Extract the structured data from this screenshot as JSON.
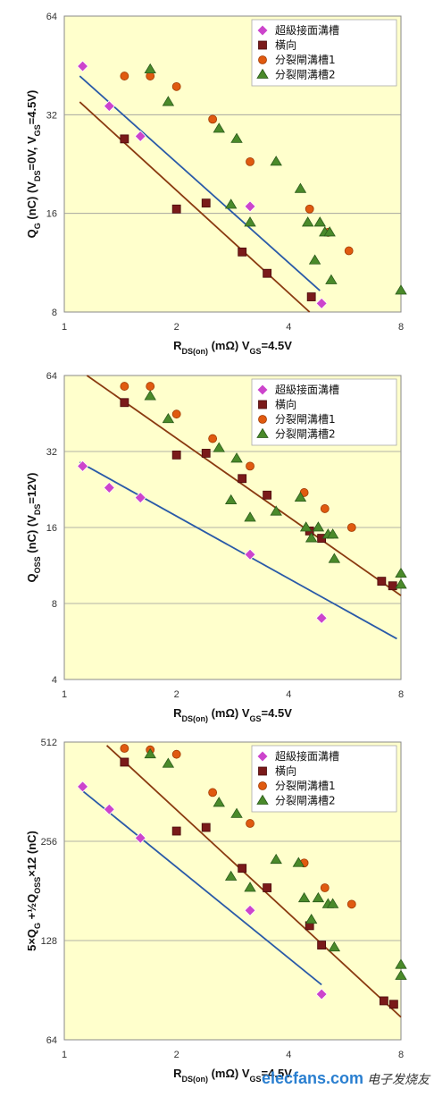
{
  "chart_data": [
    {
      "type": "scatter",
      "xscale": "log",
      "yscale": "log",
      "xlim": [
        1,
        8
      ],
      "ylim": [
        8,
        64
      ],
      "xticks": [
        1,
        2,
        4,
        8
      ],
      "yticks": [
        8,
        16,
        32,
        64
      ],
      "ylabel_main": "Q",
      "ylabel_sub": "G",
      "ylabel_rest": " (nC) (V",
      "ylabel_sub2": "DS",
      "ylabel_rest2": "=0V, V",
      "ylabel_sub3": "GS",
      "ylabel_rest3": "=4.5V)",
      "xlabel_main": "R",
      "xlabel_sub": "DS(on)",
      "xlabel_rest": " (mΩ) V",
      "xlabel_sub2": "GS",
      "xlabel_rest2": "=4.5V",
      "legend_position": "top-right",
      "series": [
        {
          "name": "超級接面溝槽",
          "marker": "diamond",
          "color": "#cc44cc",
          "points": [
            [
              1.12,
              45
            ],
            [
              1.32,
              34
            ],
            [
              1.6,
              27.5
            ],
            [
              3.15,
              16.8
            ],
            [
              4.9,
              8.5
            ]
          ]
        },
        {
          "name": "橫向",
          "marker": "square",
          "color": "#7a1a1a",
          "points": [
            [
              1.45,
              27
            ],
            [
              2.0,
              16.5
            ],
            [
              2.4,
              17.2
            ],
            [
              3.0,
              12.2
            ],
            [
              3.5,
              10.5
            ],
            [
              4.6,
              8.9
            ]
          ]
        },
        {
          "name": "分裂閘溝槽1",
          "marker": "circle",
          "color": "#e05a10",
          "points": [
            [
              1.45,
              42
            ],
            [
              1.7,
              42
            ],
            [
              2.0,
              39
            ],
            [
              2.5,
              31
            ],
            [
              3.15,
              23
            ],
            [
              4.55,
              16.5
            ],
            [
              5.1,
              14
            ],
            [
              5.8,
              12.3
            ]
          ]
        },
        {
          "name": "分裂閘溝槽2",
          "marker": "triangle",
          "color": "#4a8a2a",
          "points": [
            [
              1.7,
              44
            ],
            [
              1.9,
              35
            ],
            [
              2.6,
              29
            ],
            [
              2.8,
              17
            ],
            [
              2.9,
              27
            ],
            [
              3.15,
              15
            ],
            [
              3.7,
              23
            ],
            [
              4.3,
              19
            ],
            [
              4.5,
              15
            ],
            [
              4.7,
              11.5
            ],
            [
              4.85,
              15
            ],
            [
              5.0,
              14
            ],
            [
              5.15,
              14
            ],
            [
              5.2,
              10
            ],
            [
              8.0,
              9.3
            ]
          ]
        }
      ],
      "trendlines": [
        {
          "color": "#2a5aa8",
          "from": [
            1.1,
            42
          ],
          "to": [
            4.85,
            9.3
          ]
        },
        {
          "color": "#8a3a10",
          "from": [
            1.1,
            35
          ],
          "to": [
            4.55,
            8.0
          ]
        }
      ]
    },
    {
      "type": "scatter",
      "xscale": "log",
      "yscale": "log",
      "xlim": [
        1,
        8
      ],
      "ylim": [
        4,
        64
      ],
      "xticks": [
        1,
        2,
        4,
        8
      ],
      "yticks": [
        4,
        8,
        16,
        32,
        64
      ],
      "ylabel_main": "Q",
      "ylabel_sub": "OSS",
      "ylabel_rest": " (nC) (V",
      "ylabel_sub2": "DS",
      "ylabel_rest2": "=12V)",
      "xlabel_main": "R",
      "xlabel_sub": "DS(on)",
      "xlabel_rest": " (mΩ) V",
      "xlabel_sub2": "GS",
      "xlabel_rest2": "=4.5V",
      "legend_position": "top-right",
      "series": [
        {
          "name": "超級接面溝槽",
          "marker": "diamond",
          "color": "#cc44cc",
          "points": [
            [
              1.12,
              28
            ],
            [
              1.32,
              23
            ],
            [
              1.6,
              21
            ],
            [
              3.15,
              12.5
            ],
            [
              4.9,
              7
            ]
          ]
        },
        {
          "name": "橫向",
          "marker": "square",
          "color": "#7a1a1a",
          "points": [
            [
              1.45,
              50
            ],
            [
              2.0,
              31
            ],
            [
              2.4,
              31.5
            ],
            [
              3.0,
              25
            ],
            [
              3.5,
              21.5
            ],
            [
              4.55,
              15.5
            ],
            [
              4.9,
              14.5
            ],
            [
              7.1,
              9.8
            ],
            [
              7.6,
              9.4
            ]
          ]
        },
        {
          "name": "分裂閘溝槽1",
          "marker": "circle",
          "color": "#e05a10",
          "points": [
            [
              1.45,
              58
            ],
            [
              1.7,
              58
            ],
            [
              2.0,
              45
            ],
            [
              2.5,
              36
            ],
            [
              3.15,
              28
            ],
            [
              4.4,
              22
            ],
            [
              5.0,
              19
            ],
            [
              5.9,
              16
            ]
          ]
        },
        {
          "name": "分裂閘溝槽2",
          "marker": "triangle",
          "color": "#4a8a2a",
          "points": [
            [
              1.7,
              53
            ],
            [
              1.9,
              43
            ],
            [
              2.6,
              33
            ],
            [
              2.8,
              20.5
            ],
            [
              2.9,
              30
            ],
            [
              3.15,
              17.5
            ],
            [
              3.7,
              18.5
            ],
            [
              4.3,
              21
            ],
            [
              4.45,
              16
            ],
            [
              4.6,
              14.5
            ],
            [
              4.8,
              16
            ],
            [
              5.1,
              15
            ],
            [
              5.25,
              15
            ],
            [
              5.3,
              12
            ],
            [
              8.0,
              10.5
            ],
            [
              8.0,
              9.5
            ]
          ]
        }
      ],
      "trendlines": [
        {
          "color": "#2a5aa8",
          "from": [
            1.1,
            29
          ],
          "to": [
            7.8,
            5.8
          ]
        },
        {
          "color": "#8a3a10",
          "from": [
            1.15,
            64
          ],
          "to": [
            8.0,
            8.6
          ]
        }
      ]
    },
    {
      "type": "scatter",
      "xscale": "log",
      "yscale": "log",
      "xlim": [
        1,
        8
      ],
      "ylim": [
        64,
        512
      ],
      "xticks": [
        1,
        2,
        4,
        8
      ],
      "yticks": [
        64,
        128,
        256,
        512
      ],
      "ylabel_formula": "5×Q",
      "ylabel_sub": "G",
      "ylabel_mid": " +½Q",
      "ylabel_sub2": "OSS",
      "ylabel_end": "×12 (nC)",
      "xlabel_main": "R",
      "xlabel_sub": "DS(on)",
      "xlabel_rest": " (mΩ) V",
      "xlabel_sub2": "GS",
      "xlabel_rest2": "=4.5V",
      "legend_position": "top-right",
      "series": [
        {
          "name": "超級接面溝槽",
          "marker": "diamond",
          "color": "#cc44cc",
          "points": [
            [
              1.12,
              375
            ],
            [
              1.32,
              320
            ],
            [
              1.6,
              262
            ],
            [
              3.15,
              158
            ],
            [
              4.9,
              88
            ]
          ]
        },
        {
          "name": "橫向",
          "marker": "square",
          "color": "#7a1a1a",
          "points": [
            [
              1.45,
              445
            ],
            [
              2.0,
              275
            ],
            [
              2.4,
              282
            ],
            [
              3.0,
              212
            ],
            [
              3.5,
              185
            ],
            [
              4.55,
              142
            ],
            [
              4.9,
              124
            ],
            [
              7.2,
              84
            ],
            [
              7.65,
              82
            ]
          ]
        },
        {
          "name": "分裂閘溝槽1",
          "marker": "circle",
          "color": "#e05a10",
          "points": [
            [
              1.45,
              490
            ],
            [
              1.7,
              485
            ],
            [
              2.0,
              470
            ],
            [
              2.5,
              360
            ],
            [
              3.15,
              290
            ],
            [
              4.4,
              220
            ],
            [
              5.0,
              185
            ],
            [
              5.9,
              165
            ]
          ]
        },
        {
          "name": "分裂閘溝槽2",
          "marker": "triangle",
          "color": "#4a8a2a",
          "points": [
            [
              1.7,
              470
            ],
            [
              1.9,
              440
            ],
            [
              2.6,
              335
            ],
            [
              2.8,
              200
            ],
            [
              2.9,
              310
            ],
            [
              3.15,
              185
            ],
            [
              3.7,
              225
            ],
            [
              4.25,
              220
            ],
            [
              4.4,
              172
            ],
            [
              4.6,
              148
            ],
            [
              4.8,
              172
            ],
            [
              5.1,
              165
            ],
            [
              5.25,
              165
            ],
            [
              5.3,
              122
            ],
            [
              8.0,
              108
            ],
            [
              8.0,
              100
            ]
          ]
        }
      ],
      "trendlines": [
        {
          "color": "#2a5aa8",
          "from": [
            1.1,
            370
          ],
          "to": [
            4.9,
            94
          ]
        },
        {
          "color": "#8a3a10",
          "from": [
            1.3,
            500
          ],
          "to": [
            8.0,
            75
          ]
        }
      ]
    }
  ],
  "watermark": {
    "text": "elecfans.com",
    "text_cn": "电子发烧友"
  }
}
